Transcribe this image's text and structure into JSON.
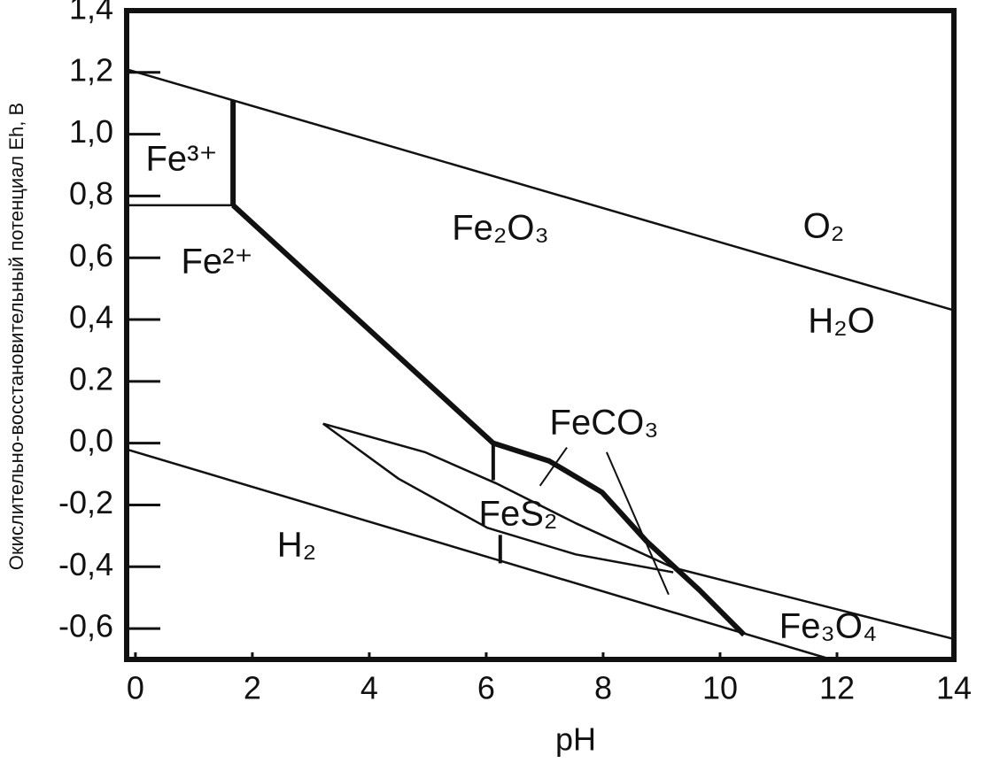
{
  "chart_data": {
    "type": "line",
    "xlabel": "pH",
    "ylabel": "Окислительно-восстановительный потенциал Eh, В",
    "xlim": [
      -0.15,
      14
    ],
    "ylim": [
      -0.7,
      1.4
    ],
    "xticks": [
      0,
      2,
      4,
      6,
      8,
      10,
      12,
      14
    ],
    "yticks": [
      {
        "value": 1.4,
        "label": "1,4"
      },
      {
        "value": 1.2,
        "label": "1,2"
      },
      {
        "value": 1.0,
        "label": "1,0"
      },
      {
        "value": 0.8,
        "label": "0,8"
      },
      {
        "value": 0.6,
        "label": "0,6"
      },
      {
        "value": 0.4,
        "label": "0,4"
      },
      {
        "value": 0.2,
        "label": "0.2"
      },
      {
        "value": 0.0,
        "label": "0,0"
      },
      {
        "value": -0.2,
        "label": "-0,2"
      },
      {
        "value": -0.4,
        "label": "-0,4"
      },
      {
        "value": -0.6,
        "label": "-0,6"
      }
    ],
    "color": "#111111",
    "series": [
      {
        "x": [
          -0.15,
          14
        ],
        "values": [
          1.21,
          0.43
        ],
        "linewidth": 2.5
      },
      {
        "x": [
          -0.15,
          11.9
        ],
        "values": [
          -0.02,
          -0.7
        ],
        "linewidth": 2.5
      },
      {
        "x": [
          -0.15,
          1.67
        ],
        "values": [
          0.77,
          0.77
        ],
        "linewidth": 2.5
      },
      {
        "x": [
          1.67,
          1.67
        ],
        "values": [
          1.11,
          0.77
        ],
        "linewidth": 6
      },
      {
        "x": [
          1.67,
          6.12
        ],
        "values": [
          0.77,
          0.0
        ],
        "linewidth": 6
      },
      {
        "x": [
          6.12,
          6.12
        ],
        "values": [
          0.0,
          -0.12
        ],
        "linewidth": 4
      },
      {
        "x": [
          6.12,
          7.08,
          7.98,
          8.74,
          9.65,
          10.41
        ],
        "values": [
          0.0,
          -0.058,
          -0.159,
          -0.317,
          -0.476,
          -0.62
        ],
        "linewidth": 6
      },
      {
        "x": [
          3.21,
          4.95,
          6.17,
          7.53,
          9.2,
          14
        ],
        "values": [
          0.063,
          -0.029,
          -0.13,
          -0.259,
          -0.403,
          -0.634
        ],
        "linewidth": 2.5
      },
      {
        "x": [
          3.21,
          4.5,
          6.02,
          7.53,
          9.2
        ],
        "values": [
          0.063,
          -0.115,
          -0.274,
          -0.36,
          -0.418
        ],
        "linewidth": 2.5
      },
      {
        "x": [
          6.24,
          6.24
        ],
        "values": [
          -0.297,
          -0.389
        ],
        "linewidth": 4
      },
      {
        "x": [
          6.92,
          7.38
        ],
        "values": [
          -0.138,
          -0.014
        ],
        "linewidth": 2
      },
      {
        "x": [
          8.06,
          9.12
        ],
        "values": [
          -0.029,
          -0.49
        ],
        "linewidth": 2
      }
    ],
    "annotations": [
      "Fe³⁺",
      "Fe²⁺",
      "Fe₂O₃",
      "O₂",
      "H₂O",
      "FeCO₃",
      "FeS₂",
      "H₂",
      "Fe₃O₄"
    ]
  }
}
